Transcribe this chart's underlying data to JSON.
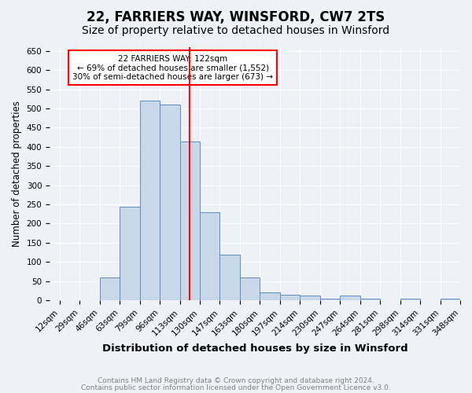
{
  "title1": "22, FARRIERS WAY, WINSFORD, CW7 2TS",
  "title2": "Size of property relative to detached houses in Winsford",
  "xlabel": "Distribution of detached houses by size in Winsford",
  "ylabel": "Number of detached properties",
  "bin_labels": [
    "12sqm",
    "29sqm",
    "46sqm",
    "63sqm",
    "79sqm",
    "96sqm",
    "113sqm",
    "130sqm",
    "147sqm",
    "163sqm",
    "180sqm",
    "197sqm",
    "214sqm",
    "230sqm",
    "247sqm",
    "264sqm",
    "281sqm",
    "298sqm",
    "314sqm",
    "331sqm",
    "348sqm"
  ],
  "bar_values": [
    0,
    0,
    60,
    245,
    520,
    510,
    415,
    230,
    120,
    60,
    20,
    15,
    12,
    5,
    12,
    5,
    0,
    5,
    0,
    5
  ],
  "bar_color": "#c8d8e8",
  "bar_edge_color": "#5a8fc4",
  "red_line_index": 6.5,
  "annotation_text": "22 FARRIERS WAY: 122sqm\n← 69% of detached houses are smaller (1,552)\n30% of semi-detached houses are larger (673) →",
  "ylim": [
    0,
    660
  ],
  "yticks": [
    0,
    50,
    100,
    150,
    200,
    250,
    300,
    350,
    400,
    450,
    500,
    550,
    600,
    650
  ],
  "footer1": "Contains HM Land Registry data © Crown copyright and database right 2024.",
  "footer2": "Contains public sector information licensed under the Open Government Licence v3.0.",
  "bg_color": "#eef2f7",
  "plot_bg_color": "#eef2f7",
  "title1_fontsize": 12,
  "title2_fontsize": 10,
  "xlabel_fontsize": 9.5,
  "ylabel_fontsize": 8.5,
  "tick_fontsize": 7.5,
  "footer_fontsize": 6.5
}
